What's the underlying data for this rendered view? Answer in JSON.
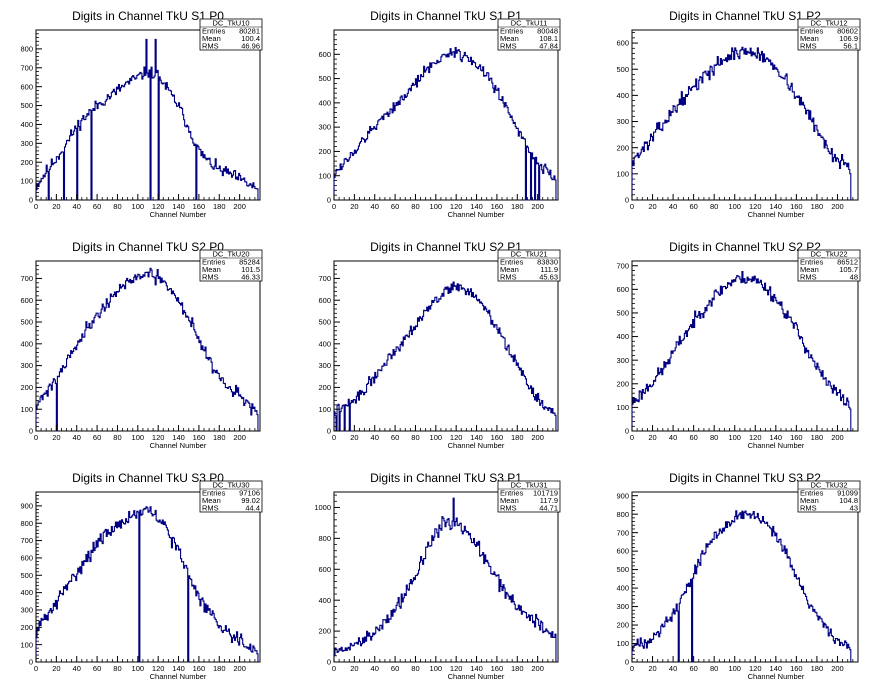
{
  "chart_data": [
    {
      "type": "histogram",
      "title": "Digits in Channel TkU S1 P0",
      "xlabel": "Channel Number",
      "ylabel": "",
      "xlim": [
        0,
        220
      ],
      "ylim": [
        0,
        900
      ],
      "xticks": [
        0,
        20,
        40,
        60,
        80,
        100,
        120,
        140,
        160,
        180,
        200
      ],
      "yticks": [
        0,
        100,
        200,
        300,
        400,
        500,
        600,
        700,
        800
      ],
      "stats": {
        "name": "DC_TkU10",
        "Entries": "80281",
        "Mean": "100.4",
        "RMS": "46.96"
      },
      "profile": [
        [
          0,
          70
        ],
        [
          10,
          150
        ],
        [
          20,
          220
        ],
        [
          30,
          300
        ],
        [
          40,
          390
        ],
        [
          50,
          450
        ],
        [
          60,
          500
        ],
        [
          70,
          540
        ],
        [
          80,
          580
        ],
        [
          90,
          620
        ],
        [
          100,
          650
        ],
        [
          110,
          680
        ],
        [
          120,
          660
        ],
        [
          130,
          580
        ],
        [
          140,
          500
        ],
        [
          150,
          380
        ],
        [
          160,
          260
        ],
        [
          170,
          200
        ],
        [
          180,
          160
        ],
        [
          190,
          140
        ],
        [
          200,
          110
        ],
        [
          210,
          80
        ],
        [
          217,
          60
        ]
      ],
      "spikes": [
        [
          12,
          5
        ],
        [
          27,
          0
        ],
        [
          40,
          5
        ],
        [
          54,
          0
        ],
        [
          108,
          850
        ],
        [
          112,
          0
        ],
        [
          117,
          850
        ],
        [
          120,
          0
        ],
        [
          157,
          0
        ]
      ],
      "noise": 22,
      "seed": 11
    },
    {
      "type": "histogram",
      "title": "Digits in Channel TkU S1 P1",
      "xlabel": "Channel Number",
      "ylabel": "",
      "xlim": [
        0,
        220
      ],
      "ylim": [
        0,
        700
      ],
      "xticks": [
        0,
        20,
        40,
        60,
        80,
        100,
        120,
        140,
        160,
        180,
        200
      ],
      "yticks": [
        0,
        100,
        200,
        300,
        400,
        500,
        600
      ],
      "stats": {
        "name": "DC_TkU11",
        "Entries": "80048",
        "Mean": "108.1",
        "RMS": "47.84"
      },
      "profile": [
        [
          0,
          110
        ],
        [
          10,
          150
        ],
        [
          20,
          200
        ],
        [
          30,
          250
        ],
        [
          40,
          300
        ],
        [
          50,
          350
        ],
        [
          60,
          390
        ],
        [
          70,
          430
        ],
        [
          80,
          480
        ],
        [
          90,
          530
        ],
        [
          100,
          570
        ],
        [
          110,
          600
        ],
        [
          120,
          610
        ],
        [
          130,
          590
        ],
        [
          140,
          560
        ],
        [
          150,
          510
        ],
        [
          160,
          450
        ],
        [
          170,
          380
        ],
        [
          180,
          300
        ],
        [
          190,
          220
        ],
        [
          200,
          150
        ],
        [
          210,
          120
        ],
        [
          217,
          90
        ]
      ],
      "spikes": [
        [
          188,
          0
        ],
        [
          193,
          0
        ],
        [
          197,
          0
        ],
        [
          201,
          0
        ]
      ],
      "noise": 16,
      "seed": 12
    },
    {
      "type": "histogram",
      "title": "Digits in Channel TkU S1 P2",
      "xlabel": "Channel Number",
      "ylabel": "",
      "xlim": [
        0,
        220
      ],
      "ylim": [
        0,
        650
      ],
      "xticks": [
        0,
        20,
        40,
        60,
        80,
        100,
        120,
        140,
        160,
        180,
        200
      ],
      "yticks": [
        0,
        100,
        200,
        300,
        400,
        500,
        600
      ],
      "stats": {
        "name": "DC_TkU12",
        "Entries": "80602",
        "Mean": "106.9",
        "RMS": "56.1"
      },
      "profile": [
        [
          0,
          150
        ],
        [
          10,
          190
        ],
        [
          20,
          240
        ],
        [
          30,
          290
        ],
        [
          40,
          340
        ],
        [
          50,
          390
        ],
        [
          60,
          430
        ],
        [
          70,
          470
        ],
        [
          80,
          510
        ],
        [
          90,
          540
        ],
        [
          100,
          560
        ],
        [
          110,
          570
        ],
        [
          120,
          560
        ],
        [
          130,
          540
        ],
        [
          140,
          510
        ],
        [
          150,
          460
        ],
        [
          160,
          400
        ],
        [
          170,
          340
        ],
        [
          180,
          270
        ],
        [
          190,
          200
        ],
        [
          200,
          160
        ],
        [
          210,
          130
        ],
        [
          212,
          110
        ]
      ],
      "spikes": [
        [
          213,
          0
        ]
      ],
      "noise": 18,
      "seed": 13
    },
    {
      "type": "histogram",
      "title": "Digits in Channel TkU S2 P0",
      "xlabel": "Channel Number",
      "ylabel": "",
      "xlim": [
        0,
        220
      ],
      "ylim": [
        0,
        780
      ],
      "xticks": [
        0,
        20,
        40,
        60,
        80,
        100,
        120,
        140,
        160,
        180,
        200
      ],
      "yticks": [
        0,
        100,
        200,
        300,
        400,
        500,
        600,
        700
      ],
      "stats": {
        "name": "DC_TkU20",
        "Entries": "85284",
        "Mean": "101.5",
        "RMS": "46.33"
      },
      "profile": [
        [
          0,
          120
        ],
        [
          10,
          180
        ],
        [
          20,
          240
        ],
        [
          30,
          320
        ],
        [
          40,
          400
        ],
        [
          50,
          470
        ],
        [
          60,
          530
        ],
        [
          70,
          590
        ],
        [
          80,
          640
        ],
        [
          90,
          680
        ],
        [
          100,
          710
        ],
        [
          110,
          720
        ],
        [
          120,
          700
        ],
        [
          130,
          660
        ],
        [
          140,
          600
        ],
        [
          150,
          520
        ],
        [
          160,
          420
        ],
        [
          170,
          330
        ],
        [
          180,
          250
        ],
        [
          190,
          200
        ],
        [
          200,
          160
        ],
        [
          210,
          120
        ],
        [
          217,
          80
        ]
      ],
      "spikes": [
        [
          20,
          0
        ]
      ],
      "noise": 20,
      "seed": 21
    },
    {
      "type": "histogram",
      "title": "Digits in Channel TkU S2 P1",
      "xlabel": "Channel Number",
      "ylabel": "",
      "xlim": [
        0,
        220
      ],
      "ylim": [
        0,
        780
      ],
      "xticks": [
        0,
        20,
        40,
        60,
        80,
        100,
        120,
        140,
        160,
        180,
        200
      ],
      "yticks": [
        0,
        100,
        200,
        300,
        400,
        500,
        600,
        700
      ],
      "stats": {
        "name": "DC_TkU21",
        "Entries": "83830",
        "Mean": "111.9",
        "RMS": "45.63"
      },
      "profile": [
        [
          0,
          90
        ],
        [
          10,
          110
        ],
        [
          20,
          140
        ],
        [
          30,
          190
        ],
        [
          40,
          250
        ],
        [
          50,
          310
        ],
        [
          60,
          370
        ],
        [
          70,
          430
        ],
        [
          80,
          490
        ],
        [
          90,
          550
        ],
        [
          100,
          600
        ],
        [
          110,
          640
        ],
        [
          120,
          670
        ],
        [
          130,
          650
        ],
        [
          140,
          610
        ],
        [
          150,
          550
        ],
        [
          160,
          470
        ],
        [
          170,
          390
        ],
        [
          180,
          300
        ],
        [
          190,
          220
        ],
        [
          200,
          150
        ],
        [
          210,
          90
        ],
        [
          217,
          70
        ]
      ],
      "spikes": [
        [
          2,
          0
        ],
        [
          5,
          0
        ],
        [
          10,
          0
        ],
        [
          15,
          0
        ]
      ],
      "noise": 18,
      "seed": 22
    },
    {
      "type": "histogram",
      "title": "Digits in Channel TkU S2 P2",
      "xlabel": "Channel Number",
      "ylabel": "",
      "xlim": [
        0,
        220
      ],
      "ylim": [
        0,
        720
      ],
      "xticks": [
        0,
        20,
        40,
        60,
        80,
        100,
        120,
        140,
        160,
        180,
        200
      ],
      "yticks": [
        0,
        100,
        200,
        300,
        400,
        500,
        600,
        700
      ],
      "stats": {
        "name": "DC_TkU22",
        "Entries": "86512",
        "Mean": "105.7",
        "RMS": "48"
      },
      "profile": [
        [
          0,
          120
        ],
        [
          10,
          160
        ],
        [
          20,
          210
        ],
        [
          30,
          260
        ],
        [
          40,
          330
        ],
        [
          50,
          400
        ],
        [
          60,
          460
        ],
        [
          70,
          520
        ],
        [
          80,
          570
        ],
        [
          90,
          610
        ],
        [
          100,
          640
        ],
        [
          110,
          650
        ],
        [
          120,
          640
        ],
        [
          130,
          610
        ],
        [
          140,
          560
        ],
        [
          150,
          500
        ],
        [
          160,
          430
        ],
        [
          170,
          350
        ],
        [
          180,
          270
        ],
        [
          190,
          200
        ],
        [
          200,
          160
        ],
        [
          210,
          120
        ],
        [
          212,
          100
        ]
      ],
      "spikes": [
        [
          213,
          0
        ]
      ],
      "noise": 20,
      "seed": 23
    },
    {
      "type": "histogram",
      "title": "Digits in Channel TkU S3 P0",
      "xlabel": "Channel Number",
      "ylabel": "",
      "xlim": [
        0,
        220
      ],
      "ylim": [
        0,
        980
      ],
      "xticks": [
        0,
        20,
        40,
        60,
        80,
        100,
        120,
        140,
        160,
        180,
        200
      ],
      "yticks": [
        0,
        100,
        200,
        300,
        400,
        500,
        600,
        700,
        800,
        900
      ],
      "stats": {
        "name": "DC_TkU30",
        "Entries": "97106",
        "Mean": "99.02",
        "RMS": "44.4"
      },
      "profile": [
        [
          0,
          180
        ],
        [
          10,
          260
        ],
        [
          20,
          340
        ],
        [
          30,
          430
        ],
        [
          40,
          520
        ],
        [
          50,
          600
        ],
        [
          60,
          680
        ],
        [
          70,
          740
        ],
        [
          80,
          790
        ],
        [
          90,
          830
        ],
        [
          100,
          860
        ],
        [
          110,
          870
        ],
        [
          120,
          830
        ],
        [
          130,
          750
        ],
        [
          140,
          640
        ],
        [
          150,
          500
        ],
        [
          160,
          380
        ],
        [
          170,
          290
        ],
        [
          180,
          220
        ],
        [
          190,
          170
        ],
        [
          200,
          130
        ],
        [
          210,
          90
        ],
        [
          217,
          60
        ]
      ],
      "spikes": [
        [
          101,
          0
        ],
        [
          149,
          0
        ]
      ],
      "noise": 28,
      "seed": 31
    },
    {
      "type": "histogram",
      "title": "Digits in Channel TkU S3 P1",
      "xlabel": "Channel Number",
      "ylabel": "",
      "xlim": [
        0,
        220
      ],
      "ylim": [
        0,
        1100
      ],
      "xticks": [
        0,
        20,
        40,
        60,
        80,
        100,
        120,
        140,
        160,
        180,
        200
      ],
      "yticks": [
        0,
        200,
        400,
        600,
        800,
        1000
      ],
      "stats": {
        "name": "DC_TkU31",
        "Entries": "101719",
        "Mean": "117.9",
        "RMS": "44.71"
      },
      "profile": [
        [
          0,
          60
        ],
        [
          10,
          80
        ],
        [
          20,
          110
        ],
        [
          30,
          150
        ],
        [
          40,
          200
        ],
        [
          50,
          260
        ],
        [
          60,
          340
        ],
        [
          70,
          440
        ],
        [
          80,
          560
        ],
        [
          90,
          700
        ],
        [
          100,
          840
        ],
        [
          110,
          900
        ],
        [
          120,
          900
        ],
        [
          130,
          840
        ],
        [
          140,
          760
        ],
        [
          150,
          640
        ],
        [
          160,
          540
        ],
        [
          170,
          440
        ],
        [
          180,
          360
        ],
        [
          190,
          300
        ],
        [
          200,
          250
        ],
        [
          210,
          200
        ],
        [
          217,
          160
        ]
      ],
      "spikes": [
        [
          117,
          1060
        ]
      ],
      "noise": 32,
      "seed": 32
    },
    {
      "type": "histogram",
      "title": "Digits in Channel TkU S3 P2",
      "xlabel": "Channel Number",
      "ylabel": "",
      "xlim": [
        0,
        220
      ],
      "ylim": [
        0,
        920
      ],
      "xticks": [
        0,
        20,
        40,
        60,
        80,
        100,
        120,
        140,
        160,
        180,
        200
      ],
      "yticks": [
        0,
        100,
        200,
        300,
        400,
        500,
        600,
        700,
        800,
        900
      ],
      "stats": {
        "name": "DC_TkU32",
        "Entries": "91099",
        "Mean": "104.8",
        "RMS": "43"
      },
      "profile": [
        [
          0,
          80
        ],
        [
          10,
          100
        ],
        [
          20,
          140
        ],
        [
          30,
          190
        ],
        [
          40,
          260
        ],
        [
          50,
          360
        ],
        [
          60,
          480
        ],
        [
          70,
          590
        ],
        [
          80,
          680
        ],
        [
          90,
          740
        ],
        [
          100,
          780
        ],
        [
          110,
          800
        ],
        [
          120,
          790
        ],
        [
          130,
          750
        ],
        [
          140,
          680
        ],
        [
          150,
          580
        ],
        [
          160,
          460
        ],
        [
          170,
          350
        ],
        [
          180,
          250
        ],
        [
          190,
          180
        ],
        [
          200,
          120
        ],
        [
          210,
          80
        ],
        [
          212,
          60
        ]
      ],
      "spikes": [
        [
          45,
          0
        ],
        [
          58,
          0
        ]
      ],
      "noise": 24,
      "seed": 33
    }
  ]
}
